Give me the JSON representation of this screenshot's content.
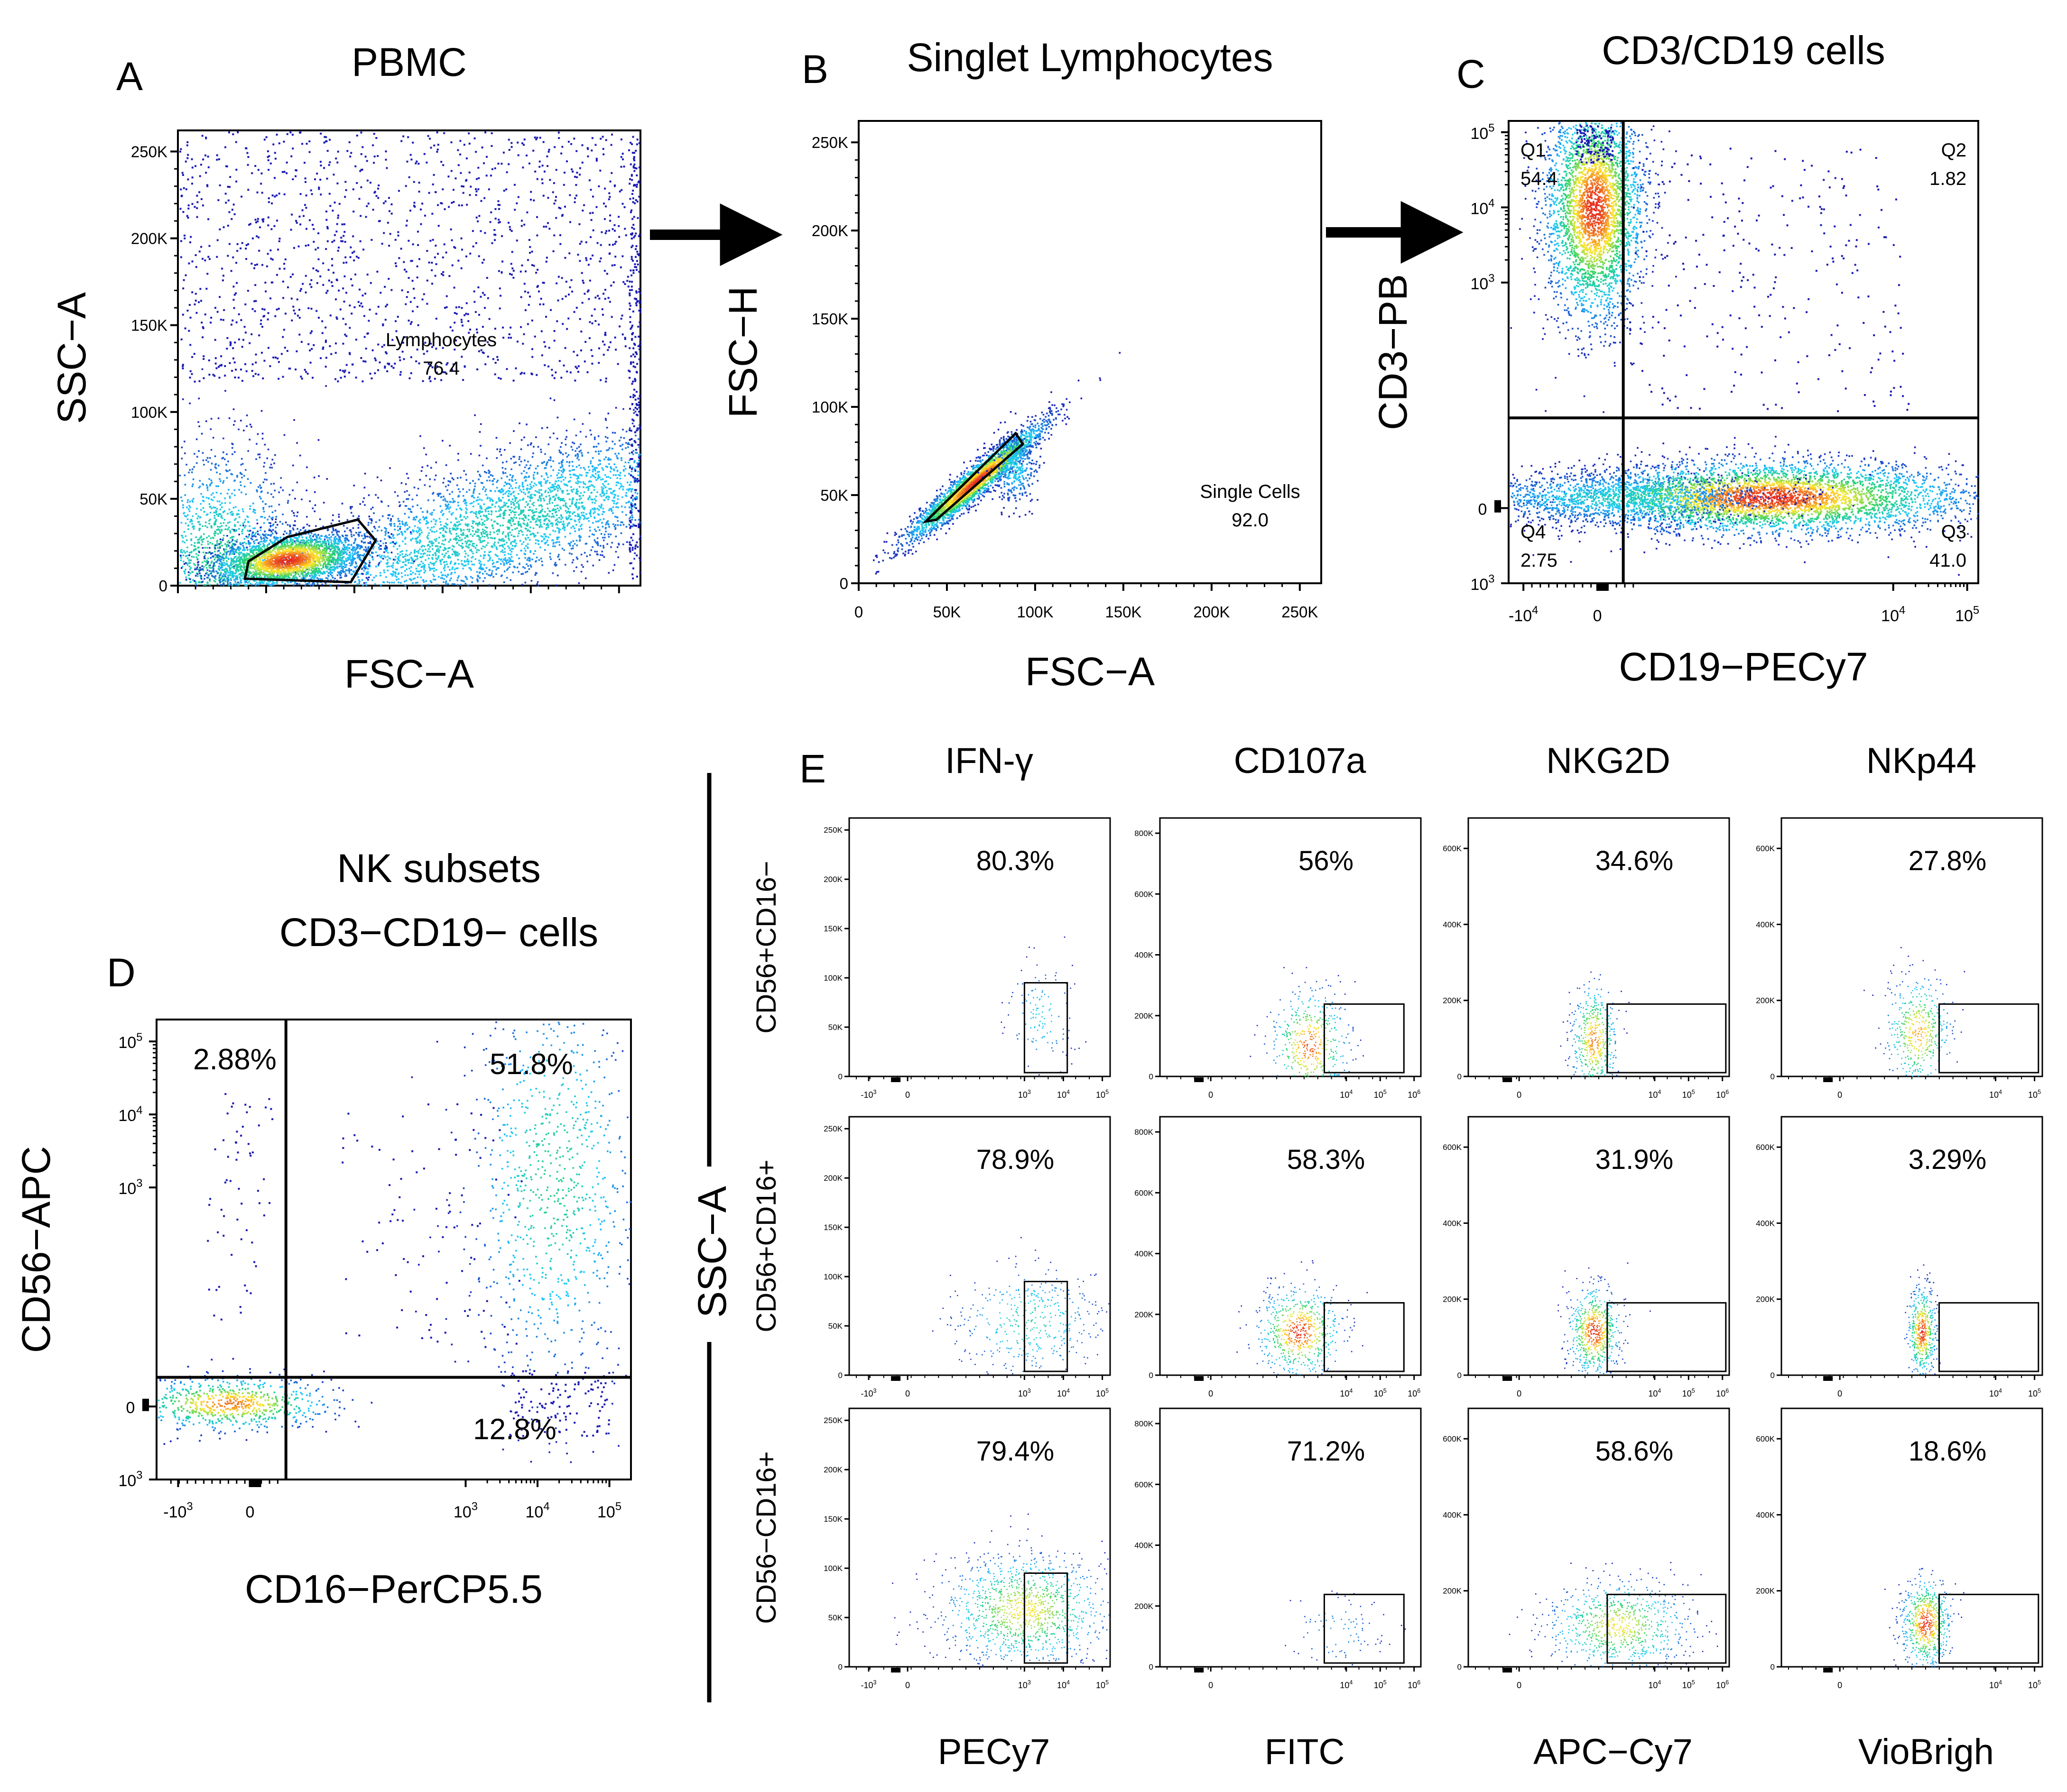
{
  "colors": {
    "density_low": "#1a1ab4",
    "density_mid1": "#1ec8ff",
    "density_mid2": "#28d26e",
    "density_mid3": "#ffe628",
    "density_high": "#e6281e",
    "axis": "#000000",
    "gate": "#000000"
  },
  "arrows": [
    "A to B",
    "B to C"
  ],
  "chart_data": [
    {
      "panel": "A",
      "type": "scatter",
      "title": "PBMC",
      "xlabel": "FSC−A",
      "ylabel": "SSC−A",
      "xlim": [
        0,
        262144
      ],
      "ylim": [
        0,
        262144
      ],
      "xticks": [],
      "xtick_labels": [],
      "yticks": [
        0,
        50000,
        100000,
        150000,
        200000,
        250000
      ],
      "ytick_labels": [
        "0",
        "50K",
        "100K",
        "150K",
        "200K",
        "250K"
      ],
      "gates": [
        {
          "name": "Lymphocytes",
          "value": "76.4",
          "type": "polygon",
          "vertices": [
            [
              38000,
              4000
            ],
            [
              40000,
              14000
            ],
            [
              62000,
              28000
            ],
            [
              102000,
              38000
            ],
            [
              112000,
              26000
            ],
            [
              98000,
              2000
            ]
          ]
        }
      ]
    },
    {
      "panel": "B",
      "type": "scatter",
      "title": "Singlet Lymphocytes",
      "xlabel": "FSC−A",
      "ylabel": "FSC−H",
      "xlim": [
        0,
        262144
      ],
      "ylim": [
        0,
        262144
      ],
      "xticks": [
        0,
        50000,
        100000,
        150000,
        200000,
        250000
      ],
      "xtick_labels": [
        "0",
        "50K",
        "100K",
        "150K",
        "200K",
        "250K"
      ],
      "yticks": [
        0,
        50000,
        100000,
        150000,
        200000,
        250000
      ],
      "ytick_labels": [
        "0",
        "50K",
        "100K",
        "150K",
        "200K",
        "250K"
      ],
      "gates": [
        {
          "name": "Single Cells",
          "value": "92.0",
          "type": "polygon",
          "vertices": [
            [
              38000,
              35000
            ],
            [
              44000,
              36000
            ],
            [
              93000,
              79000
            ],
            [
              89000,
              85000
            ]
          ]
        }
      ]
    },
    {
      "panel": "C",
      "type": "scatter",
      "title": "CD3/CD19 cells",
      "xlabel": "CD19−PECy7",
      "ylabel": "CD3−PB",
      "xlim": [
        -1.2,
        5.15
      ],
      "ylim": [
        -1.0,
        5.15
      ],
      "xticks": [
        -1,
        0,
        4,
        5
      ],
      "xtick_labels": [
        {
          "base": "-10",
          "exp": "4"
        },
        {
          "base": "0",
          "exp": ""
        },
        {
          "base": "10",
          "exp": "4"
        },
        {
          "base": "10",
          "exp": "5"
        }
      ],
      "yticks": [
        -1,
        0,
        3,
        4,
        5
      ],
      "ytick_labels": [
        {
          "base": "10",
          "exp": "3"
        },
        {
          "base": "0",
          "exp": ""
        },
        {
          "base": "10",
          "exp": "3"
        },
        {
          "base": "10",
          "exp": "4"
        },
        {
          "base": "10",
          "exp": "5"
        }
      ],
      "quadrant_x": 0.35,
      "quadrant_y": 1.2,
      "quadrants": [
        {
          "name": "Q1",
          "value": "54.4",
          "position": "top-left"
        },
        {
          "name": "Q2",
          "value": "1.82",
          "position": "top-right"
        },
        {
          "name": "Q3",
          "value": "41.0",
          "position": "bottom-right"
        },
        {
          "name": "Q4",
          "value": "2.75",
          "position": "bottom-left"
        }
      ]
    },
    {
      "panel": "D",
      "type": "scatter",
      "title": "NK subsets",
      "subtitle": "CD3−CD19− cells",
      "xlabel": "CD16−PerCP5.5",
      "ylabel": "CD56−APC",
      "xlim": [
        -1.3,
        5.3
      ],
      "ylim": [
        -1.0,
        5.3
      ],
      "xticks": [
        -1,
        0,
        3,
        4,
        5
      ],
      "xtick_labels": [
        {
          "base": "-10",
          "exp": "3"
        },
        {
          "base": "0",
          "exp": ""
        },
        {
          "base": "10",
          "exp": "3"
        },
        {
          "base": "10",
          "exp": "4"
        },
        {
          "base": "10",
          "exp": "5"
        }
      ],
      "yticks": [
        -1,
        0,
        3,
        4,
        5
      ],
      "ytick_labels": [
        {
          "base": "10",
          "exp": "3"
        },
        {
          "base": "0",
          "exp": ""
        },
        {
          "base": "10",
          "exp": "3"
        },
        {
          "base": "10",
          "exp": "4"
        },
        {
          "base": "10",
          "exp": "5"
        }
      ],
      "quadrant_x": 0.5,
      "quadrant_y": 0.4,
      "quadrants": [
        {
          "value": "2.88%",
          "position": "top-left"
        },
        {
          "value": "51.8%",
          "position": "top-right"
        },
        {
          "value": "12.8%",
          "position": "bottom-right"
        }
      ]
    }
  ],
  "panel_e": {
    "label": "E",
    "ylabel": "SSC−A",
    "columns": [
      {
        "title": "IFN-γ",
        "xlabel": "PECy7",
        "ymax": 262144,
        "yticks": [
          0,
          50000,
          100000,
          150000,
          200000,
          250000
        ],
        "ytick_labels": [
          "0",
          "50K",
          "100K",
          "150K",
          "200K",
          "250K"
        ],
        "xticks": [
          -1,
          0,
          3,
          4,
          5
        ],
        "xtick_labels": [
          {
            "base": "-10",
            "exp": "3"
          },
          {
            "base": "0",
            "exp": ""
          },
          {
            "base": "10",
            "exp": "3"
          },
          {
            "base": "10",
            "exp": "4"
          },
          {
            "base": "10",
            "exp": "5"
          }
        ],
        "gate_x": [
          3.0,
          4.1
        ]
      },
      {
        "title": "CD107a",
        "xlabel": "FITC",
        "ymax": 850000,
        "yticks": [
          0,
          200000,
          400000,
          600000,
          800000
        ],
        "ytick_labels": [
          "0",
          "200K",
          "400K",
          "600K",
          "800K"
        ],
        "xticks": [
          0,
          4,
          5,
          6
        ],
        "xtick_labels": [
          {
            "base": "0",
            "exp": ""
          },
          {
            "base": "10",
            "exp": "4"
          },
          {
            "base": "10",
            "exp": "5"
          },
          {
            "base": "10",
            "exp": "6"
          }
        ],
        "gate_x": [
          3.35,
          5.7
        ]
      },
      {
        "title": "NKG2D",
        "xlabel": "APC−Cy7",
        "ymax": 680000,
        "yticks": [
          0,
          200000,
          400000,
          600000
        ],
        "ytick_labels": [
          "0",
          "200K",
          "400K",
          "600K"
        ],
        "xticks": [
          0,
          4,
          5,
          6
        ],
        "xtick_labels": [
          {
            "base": "0",
            "exp": ""
          },
          {
            "base": "10",
            "exp": "4"
          },
          {
            "base": "10",
            "exp": "5"
          },
          {
            "base": "10",
            "exp": "6"
          }
        ],
        "gate_x": [
          2.6,
          6.1
        ]
      },
      {
        "title": "NKp44",
        "xlabel": "VioBrigh",
        "ymax": 680000,
        "yticks": [
          0,
          200000,
          400000,
          600000
        ],
        "ytick_labels": [
          "0",
          "200K",
          "400K",
          "600K"
        ],
        "xticks": [
          0,
          4,
          5
        ],
        "xtick_labels": [
          {
            "base": "0",
            "exp": ""
          },
          {
            "base": "10",
            "exp": "4"
          },
          {
            "base": "10",
            "exp": "5"
          }
        ],
        "gate_x": [
          2.55,
          5.1
        ]
      }
    ],
    "rows": [
      {
        "label": "CD56+CD16−",
        "values": [
          "80.3%",
          "56%",
          "34.6%",
          "27.8%"
        ]
      },
      {
        "label": "CD56+CD16+",
        "values": [
          "78.9%",
          "58.3%",
          "31.9%",
          "3.29%"
        ]
      },
      {
        "label": "CD56−CD16+",
        "values": [
          "79.4%",
          "71.2%",
          "58.6%",
          "18.6%"
        ]
      }
    ]
  }
}
